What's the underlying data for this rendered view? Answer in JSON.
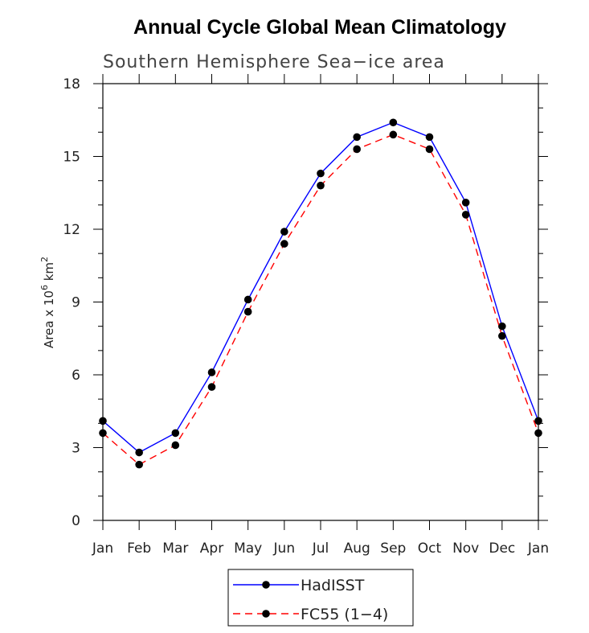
{
  "chart_data": {
    "type": "line",
    "title": "Annual Cycle Global Mean Climatology",
    "subtitle": "Southern Hemisphere Sea−ice area",
    "ylabel_prefix": "Area x 10",
    "ylabel_exp1": "6",
    "ylabel_mid": " km",
    "ylabel_exp2": "2",
    "xlabel": "",
    "categories": [
      "Jan",
      "Feb",
      "Mar",
      "Apr",
      "May",
      "Jun",
      "Jul",
      "Aug",
      "Sep",
      "Oct",
      "Nov",
      "Dec",
      "Jan"
    ],
    "ylim": [
      0,
      18
    ],
    "yticks": [
      0,
      3,
      6,
      9,
      12,
      15,
      18
    ],
    "grid": false,
    "legend_position": "bottom-center",
    "series": [
      {
        "name": "HadISST",
        "color": "#0000ff",
        "dash": "solid",
        "marker": "circle",
        "values": [
          4.1,
          2.8,
          3.6,
          6.1,
          9.1,
          11.9,
          14.3,
          15.8,
          16.4,
          15.8,
          13.1,
          8.0,
          4.1
        ]
      },
      {
        "name": "FC55 (1−4)",
        "color": "#ff0000",
        "dash": "dashed",
        "marker": "circle",
        "values": [
          3.6,
          2.3,
          3.1,
          5.5,
          8.6,
          11.4,
          13.8,
          15.3,
          15.9,
          15.3,
          12.6,
          7.6,
          3.6
        ]
      }
    ]
  }
}
